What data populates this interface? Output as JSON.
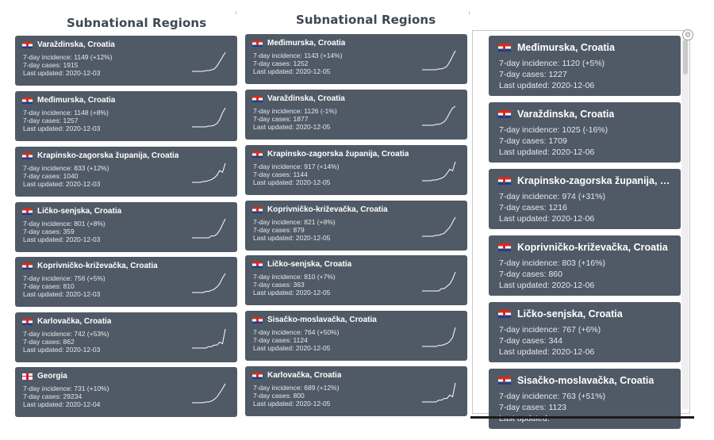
{
  "columns": [
    {
      "title": "Subnational Regions",
      "cards": [
        {
          "flag": "croatia-flag",
          "name": "Varaždinska, Croatia",
          "incidence": "7-day incidence: 1149 (+12%)",
          "cases": "7-day cases: 1915",
          "updated": "Last updated: 2020-12-03",
          "trend": [
            1,
            1,
            1,
            1,
            1,
            2,
            2,
            3,
            4,
            8,
            14,
            20,
            26
          ]
        },
        {
          "flag": "croatia-flag",
          "name": "Međimurska, Croatia",
          "incidence": "7-day incidence: 1148 (+8%)",
          "cases": "7-day cases: 1257",
          "updated": "Last updated: 2020-12-03",
          "trend": [
            1,
            1,
            1,
            1,
            1,
            1,
            2,
            2,
            3,
            5,
            10,
            18,
            24
          ]
        },
        {
          "flag": "croatia-flag",
          "name": "Krapinsko-zagorska županija, Croatia",
          "incidence": "7-day incidence: 833 (+12%)",
          "cases": "7-day cases: 1040",
          "updated": "Last updated: 2020-12-03",
          "trend": [
            1,
            1,
            1,
            1,
            2,
            2,
            3,
            4,
            6,
            9,
            14,
            12,
            22
          ]
        },
        {
          "flag": "croatia-flag",
          "name": "Ličko-senjska, Croatia",
          "incidence": "7-day incidence: 801 (+8%)",
          "cases": "7-day cases: 359",
          "updated": "Last updated: 2020-12-03",
          "trend": [
            1,
            1,
            1,
            1,
            1,
            1,
            1,
            2,
            2,
            3,
            5,
            8,
            11
          ]
        },
        {
          "flag": "croatia-flag",
          "name": "Koprivničko-križevačka, Croatia",
          "incidence": "7-day incidence: 756 (+5%)",
          "cases": "7-day cases: 810",
          "updated": "Last updated: 2020-12-03",
          "trend": [
            1,
            1,
            1,
            1,
            1,
            2,
            2,
            3,
            4,
            6,
            9,
            14,
            18
          ]
        },
        {
          "flag": "croatia-flag",
          "name": "Karlovačka, Croatia",
          "incidence": "7-day incidence: 742 (+53%)",
          "cases": "7-day cases: 862",
          "updated": "Last updated: 2020-12-03",
          "trend": [
            1,
            1,
            1,
            1,
            1,
            1,
            2,
            2,
            3,
            3,
            5,
            4,
            14
          ]
        },
        {
          "flag": "georgia-flag",
          "name": "Georgia",
          "incidence": "7-day incidence: 731 (+10%)",
          "cases": "7-day cases: 29234",
          "updated": "Last updated: 2020-12-04",
          "trend": [
            1,
            1,
            1,
            1,
            1,
            2,
            2,
            3,
            5,
            8,
            13,
            18,
            24
          ]
        }
      ]
    },
    {
      "title": "Subnational Regions",
      "cards": [
        {
          "flag": "croatia-flag",
          "name": "Međimurska, Croatia",
          "incidence": "7-day incidence: 1143 (+14%)",
          "cases": "7-day cases: 1252",
          "updated": "Last updated: 2020-12-05",
          "trend": [
            1,
            1,
            1,
            1,
            1,
            1,
            2,
            2,
            3,
            5,
            10,
            16,
            22
          ]
        },
        {
          "flag": "croatia-flag",
          "name": "Varaždinska, Croatia",
          "incidence": "7-day incidence: 1126 (-1%)",
          "cases": "7-day cases: 1877",
          "updated": "Last updated: 2020-12-05",
          "trend": [
            1,
            1,
            1,
            1,
            1,
            2,
            2,
            3,
            5,
            9,
            15,
            20,
            22
          ]
        },
        {
          "flag": "croatia-flag",
          "name": "Krapinsko-zagorska županija, Croatia",
          "incidence": "7-day incidence: 917 (+14%)",
          "cases": "7-day cases: 1144",
          "updated": "Last updated: 2020-12-05",
          "trend": [
            1,
            1,
            1,
            1,
            2,
            2,
            3,
            4,
            6,
            10,
            15,
            13,
            24
          ]
        },
        {
          "flag": "croatia-flag",
          "name": "Koprivničko-križevačka, Croatia",
          "incidence": "7-day incidence: 821 (+8%)",
          "cases": "7-day cases: 879",
          "updated": "Last updated: 2020-12-05",
          "trend": [
            1,
            1,
            1,
            1,
            1,
            2,
            2,
            3,
            4,
            7,
            10,
            15,
            20
          ]
        },
        {
          "flag": "croatia-flag",
          "name": "Ličko-senjska, Croatia",
          "incidence": "7-day incidence: 810 (+7%)",
          "cases": "7-day cases: 363",
          "updated": "Last updated: 2020-12-05",
          "trend": [
            1,
            1,
            1,
            1,
            1,
            1,
            1,
            2,
            2,
            3,
            4,
            6,
            9
          ]
        },
        {
          "flag": "croatia-flag",
          "name": "Sisačko-moslavačka, Croatia",
          "incidence": "7-day incidence: 764 (+50%)",
          "cases": "7-day cases: 1124",
          "updated": "Last updated: 2020-12-05",
          "trend": [
            1,
            1,
            1,
            1,
            1,
            1,
            2,
            2,
            3,
            4,
            6,
            10,
            20
          ]
        },
        {
          "flag": "croatia-flag",
          "name": "Karlovačka, Croatia",
          "incidence": "7-day incidence: 689 (+12%)",
          "cases": "7-day cases: 800",
          "updated": "Last updated: 2020-12-05",
          "trend": [
            1,
            1,
            1,
            1,
            1,
            1,
            2,
            2,
            3,
            3,
            5,
            4,
            12
          ]
        }
      ]
    },
    {
      "title": "",
      "cards": [
        {
          "flag": "croatia-flag",
          "name": "Međimurska, Croatia",
          "incidence": "7-day incidence: 1120 (+5%)",
          "cases": "7-day cases: 1227",
          "updated": "Last updated: 2020-12-06"
        },
        {
          "flag": "croatia-flag",
          "name": "Varaždinska, Croatia",
          "incidence": "7-day incidence: 1025 (-16%)",
          "cases": "7-day cases: 1709",
          "updated": "Last updated: 2020-12-06"
        },
        {
          "flag": "croatia-flag",
          "name": "Krapinsko-zagorska županija, …",
          "incidence": "7-day incidence: 974 (+31%)",
          "cases": "7-day cases: 1216",
          "updated": "Last updated: 2020-12-06"
        },
        {
          "flag": "croatia-flag",
          "name": "Koprivničko-križevačka, Croatia",
          "incidence": "7-day incidence: 803 (+16%)",
          "cases": "7-day cases: 860",
          "updated": "Last updated: 2020-12-06"
        },
        {
          "flag": "croatia-flag",
          "name": "Ličko-senjska, Croatia",
          "incidence": "7-day incidence: 767 (+6%)",
          "cases": "7-day cases: 344",
          "updated": "Last updated: 2020-12-06"
        },
        {
          "flag": "croatia-flag",
          "name": "Sisačko-moslavačka, Croatia",
          "incidence": "7-day incidence: 763 (+51%)",
          "cases": "7-day cases: 1123",
          "updated": "Last updated: "
        }
      ]
    }
  ],
  "colors": {
    "card": "#505a66",
    "title": "#3e4753",
    "sparkline": "#ffffff"
  },
  "panel": {
    "scroll_position": 0.0
  }
}
